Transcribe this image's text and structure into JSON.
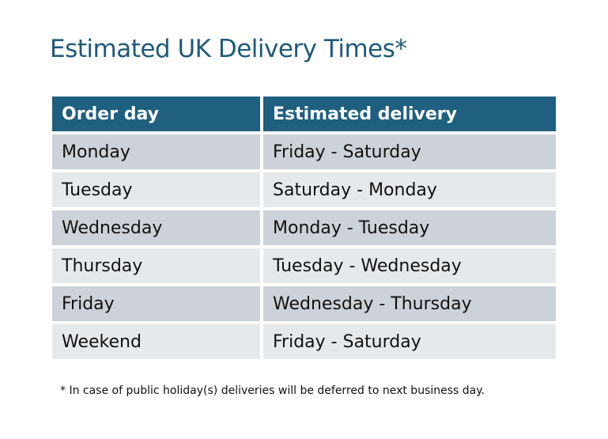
{
  "title": "Estimated UK Delivery Times*",
  "table": {
    "headers": [
      "Order day",
      "Estimated delivery"
    ],
    "rows": [
      [
        "Monday",
        "Friday - Saturday"
      ],
      [
        "Tuesday",
        "Saturday - Monday"
      ],
      [
        "Wednesday",
        "Monday - Tuesday"
      ],
      [
        "Thursday",
        "Tuesday - Wednesday"
      ],
      [
        "Friday",
        "Wednesday - Thursday"
      ],
      [
        "Weekend",
        "Friday - Saturday"
      ]
    ]
  },
  "footnote": "* In case of public holiday(s) deliveries will be deferred to next business day.",
  "colors": {
    "header": "#1f5f80",
    "title": "#1f5a78",
    "row_dark": "#cdd1d8",
    "row_light": "#e6e9ec"
  }
}
